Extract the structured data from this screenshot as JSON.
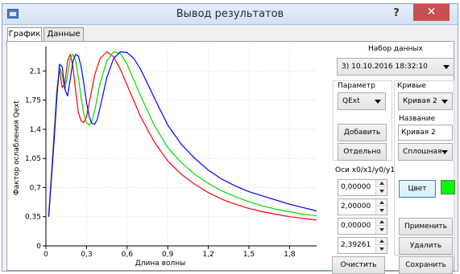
{
  "window": {
    "title": "Вывод результатов",
    "help_label": "?",
    "close_label": "✕"
  },
  "tabs": [
    {
      "label": "График"
    },
    {
      "label": "Данные"
    }
  ],
  "dataset": {
    "label": "Набор данных",
    "selected": "3) 10.10.2016 18:32:10"
  },
  "param": {
    "label": "Параметр",
    "selected": "QExt",
    "add_label": "Добавить",
    "separate_label": "Отдельно"
  },
  "curves": {
    "label": "Кривые",
    "selected": "Кривая 2",
    "name_label": "Название",
    "name_value": "Кривая 2",
    "style_selected": "Сплошная",
    "color_label": "Цвет",
    "color_value": "#00ff00",
    "apply_label": "Применить",
    "delete_label": "Удалить"
  },
  "axes": {
    "label": "Оси x0/x1/y0/y1",
    "x0": "0,00000",
    "x1": "2,00000",
    "y0": "0,00000",
    "y1": "2,39261"
  },
  "footer": {
    "clear_label": "Очистить",
    "save_label": "Сохранить"
  },
  "chart_data": {
    "type": "line",
    "xlabel": "Длина волны",
    "ylabel": "Фактор ослабления Qext",
    "xlim": [
      0,
      2.0
    ],
    "ylim": [
      0,
      2.39261
    ],
    "x_ticks": [
      "0",
      "0,3",
      "0,6",
      "0,9",
      "1,2",
      "1,5",
      "1,8"
    ],
    "y_ticks": [
      "0",
      "0,35",
      "0,7",
      "1,05",
      "1,4",
      "1,75",
      "2,1"
    ],
    "series": [
      {
        "color": "#ff0000",
        "x": [
          0.02,
          0.06,
          0.08,
          0.1,
          0.12,
          0.14,
          0.16,
          0.18,
          0.2,
          0.22,
          0.24,
          0.26,
          0.28,
          0.3,
          0.32,
          0.36,
          0.4,
          0.45,
          0.5,
          0.55,
          0.6,
          0.7,
          0.8,
          0.9,
          1.0,
          1.1,
          1.2,
          1.3,
          1.4,
          1.5,
          1.6,
          1.7,
          1.8,
          1.9,
          2.0
        ],
        "y": [
          0.35,
          1.35,
          1.85,
          2.12,
          1.9,
          1.95,
          2.22,
          2.3,
          2.15,
          1.85,
          1.6,
          1.5,
          1.48,
          1.55,
          1.72,
          2.05,
          2.25,
          2.33,
          2.27,
          2.12,
          1.93,
          1.55,
          1.25,
          1.02,
          0.86,
          0.74,
          0.64,
          0.56,
          0.5,
          0.45,
          0.41,
          0.38,
          0.35,
          0.33,
          0.31
        ]
      },
      {
        "color": "#00dd00",
        "x": [
          0.02,
          0.06,
          0.08,
          0.1,
          0.12,
          0.14,
          0.16,
          0.18,
          0.2,
          0.22,
          0.24,
          0.26,
          0.28,
          0.3,
          0.32,
          0.34,
          0.36,
          0.4,
          0.45,
          0.5,
          0.55,
          0.6,
          0.7,
          0.8,
          0.9,
          1.0,
          1.1,
          1.2,
          1.3,
          1.4,
          1.5,
          1.6,
          1.7,
          1.8,
          1.9,
          2.0
        ],
        "y": [
          0.35,
          1.3,
          1.8,
          2.15,
          2.05,
          1.88,
          2.05,
          2.25,
          2.3,
          2.22,
          2.02,
          1.78,
          1.58,
          1.48,
          1.45,
          1.5,
          1.62,
          1.95,
          2.22,
          2.33,
          2.31,
          2.18,
          1.8,
          1.45,
          1.18,
          1.0,
          0.86,
          0.75,
          0.66,
          0.59,
          0.53,
          0.48,
          0.44,
          0.41,
          0.38,
          0.36
        ]
      },
      {
        "color": "#0000ff",
        "x": [
          0.02,
          0.06,
          0.08,
          0.1,
          0.12,
          0.14,
          0.16,
          0.18,
          0.2,
          0.22,
          0.24,
          0.26,
          0.28,
          0.3,
          0.32,
          0.34,
          0.36,
          0.38,
          0.4,
          0.45,
          0.5,
          0.55,
          0.6,
          0.65,
          0.7,
          0.8,
          0.9,
          1.0,
          1.1,
          1.2,
          1.3,
          1.4,
          1.5,
          1.6,
          1.7,
          1.8,
          1.9,
          2.0
        ],
        "y": [
          0.35,
          1.25,
          1.75,
          2.18,
          2.15,
          1.88,
          1.8,
          2.0,
          2.22,
          2.3,
          2.28,
          2.15,
          1.95,
          1.72,
          1.55,
          1.47,
          1.46,
          1.52,
          1.66,
          2.02,
          2.25,
          2.33,
          2.32,
          2.25,
          2.12,
          1.78,
          1.45,
          1.22,
          1.05,
          0.91,
          0.8,
          0.72,
          0.65,
          0.6,
          0.55,
          0.5,
          0.46,
          0.42
        ]
      }
    ]
  }
}
